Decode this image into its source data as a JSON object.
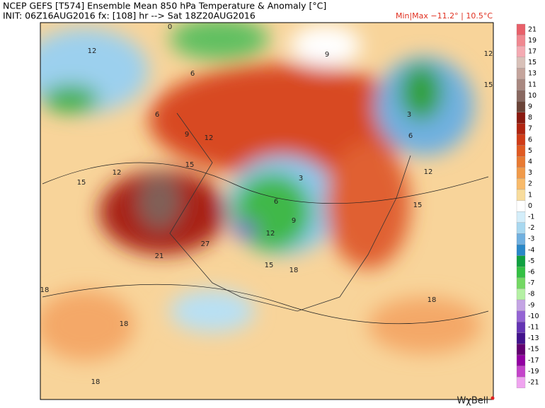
{
  "header": {
    "title": "NCEP GEFS [T574] Ensemble Mean 850 hPa Temperature & Anomaly [°C]",
    "init": "INIT: 06Z16AUG2016  fx: [108] hr --> Sat 18Z20AUG2016",
    "minmax": "Min|Max −11.2° | 10.5°C"
  },
  "colorbar": {
    "labels": [
      21,
      19,
      17,
      15,
      13,
      11,
      10,
      9,
      8,
      7,
      6,
      5,
      4,
      3,
      2,
      1,
      0,
      -1,
      -2,
      -3,
      -4,
      -5,
      -6,
      -7,
      -8,
      -9,
      -10,
      -11,
      -13,
      -15,
      -17,
      -19,
      -21
    ],
    "colors": [
      "#e8606a",
      "#f08890",
      "#f4aab2",
      "#d8c0b8",
      "#c4a49c",
      "#a88880",
      "#886860",
      "#6a4438",
      "#8a1a10",
      "#b02410",
      "#d03c18",
      "#e05a22",
      "#e87a32",
      "#f09a4a",
      "#f8ba6a",
      "#f8dc9c",
      "#ffffff",
      "#d4eefa",
      "#a8d8f0",
      "#70b0e0",
      "#2a88c8",
      "#10a040",
      "#34c044",
      "#74d864",
      "#b4f0a4",
      "#c4a4e4",
      "#9464d4",
      "#6434b4",
      "#42128c",
      "#620070",
      "#9200a2",
      "#c444ca",
      "#f0a4f0"
    ]
  },
  "contour_labels": [
    "12",
    "6",
    "0",
    "9",
    "6",
    "9",
    "12",
    "15",
    "21",
    "27",
    "18",
    "18",
    "18",
    "15",
    "12",
    "3",
    "6",
    "9",
    "12",
    "15",
    "18",
    "15",
    "18",
    "12",
    "6",
    "3",
    "15",
    "12"
  ],
  "logo": "WχBell"
}
